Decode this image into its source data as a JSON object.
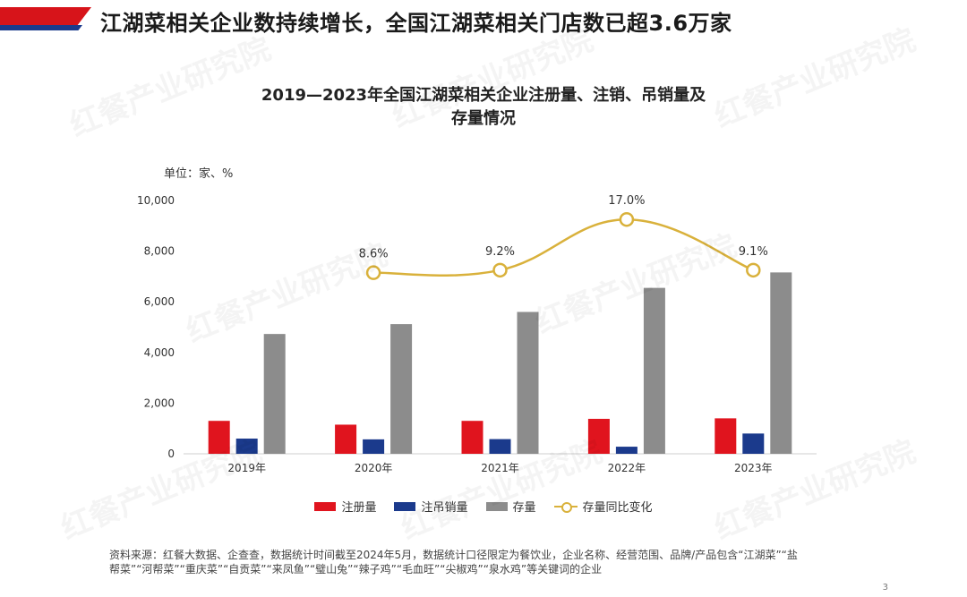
{
  "header": {
    "title": "江湖菜相关企业数持续增长，全国江湖菜相关门店数已超3.6万家",
    "accent_red": "#d7141a",
    "accent_blue": "#1b3a8c"
  },
  "watermark": "红餐产业研究院",
  "page_number": "3",
  "source_note": "资料来源：红餐大数据、企查查，数据统计时间截至2024年5月，数据统计口径限定为餐饮业，企业名称、经营范围、品牌/产品包含“江湖菜”“盐帮菜”“河帮菜”“重庆菜”“自贡菜”“来凤鱼”“璧山兔”“辣子鸡”“毛血旺”“尖椒鸡”“泉水鸡”等关键词的企业",
  "chart_data": {
    "type": "bar",
    "title_lines": [
      "2019—2023年全国江湖菜相关企业注册量、注销、吊销量及",
      "存量情况"
    ],
    "unit": "单位：家、%",
    "categories": [
      "2019年",
      "2020年",
      "2021年",
      "2022年",
      "2023年"
    ],
    "ylim": [
      0,
      10000
    ],
    "yticks": [
      "0",
      "2,000",
      "4,000",
      "6,000",
      "8,000",
      "10,000"
    ],
    "ytick_values": [
      0,
      2000,
      4000,
      6000,
      8000,
      10000
    ],
    "series": [
      {
        "name": "注册量",
        "color": "#e0141e",
        "values": [
          1300,
          1150,
          1300,
          1380,
          1400
        ]
      },
      {
        "name": "注吊销量",
        "color": "#1b3a8c",
        "values": [
          600,
          570,
          580,
          280,
          800
        ]
      },
      {
        "name": "存量",
        "color": "#8c8c8c",
        "values": [
          4730,
          5120,
          5600,
          6550,
          7160
        ]
      }
    ],
    "line_series": {
      "name": "存量同比变化",
      "color": "#d9b13b",
      "categories": [
        "2020年",
        "2021年",
        "2022年",
        "2023年"
      ],
      "values": [
        8.6,
        9.2,
        17.0,
        9.1
      ],
      "labels": [
        "8.6%",
        "9.2%",
        "17.0%",
        "9.1%"
      ],
      "plot_levels": [
        7150,
        7250,
        9250,
        7250
      ]
    }
  }
}
